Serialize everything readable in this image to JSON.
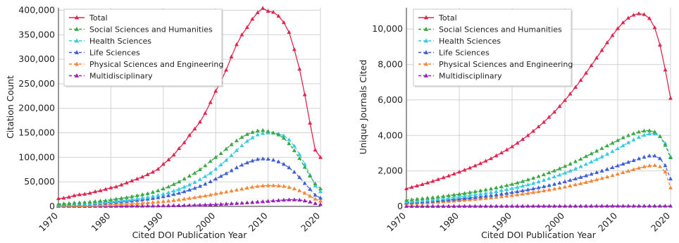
{
  "chart_data": [
    {
      "type": "line",
      "xlabel": "Cited DOI Publication Year",
      "ylabel": "Citation Count",
      "xlim": [
        1970,
        2020
      ],
      "ylim": [
        0,
        405000
      ],
      "xticks": [
        1970,
        1980,
        1990,
        2000,
        2010,
        2020
      ],
      "yticks": [
        0,
        50000,
        100000,
        150000,
        200000,
        250000,
        300000,
        350000,
        400000
      ],
      "ytick_labels": [
        "0",
        "50,000",
        "100,000",
        "150,000",
        "200,000",
        "250,000",
        "300,000",
        "350,000",
        "400,000"
      ],
      "xtick_labels": [
        "1970",
        "1980",
        "1990",
        "2000",
        "2010",
        "2020"
      ],
      "grid": true,
      "legend_position": "top-left",
      "x": [
        1970,
        1971,
        1972,
        1973,
        1974,
        1975,
        1976,
        1977,
        1978,
        1979,
        1980,
        1981,
        1982,
        1983,
        1984,
        1985,
        1986,
        1987,
        1988,
        1989,
        1990,
        1991,
        1992,
        1993,
        1994,
        1995,
        1996,
        1997,
        1998,
        1999,
        2000,
        2001,
        2002,
        2003,
        2004,
        2005,
        2006,
        2007,
        2008,
        2009,
        2010,
        2011,
        2012,
        2013,
        2014,
        2015,
        2016,
        2017,
        2018,
        2019,
        2020
      ],
      "series": [
        {
          "name": "Total",
          "color": "#e0264f",
          "marker": "triangle",
          "dash": "solid",
          "values": [
            16000,
            17000,
            19000,
            22000,
            24000,
            25000,
            27000,
            30000,
            32000,
            35000,
            38000,
            40000,
            44000,
            48000,
            52000,
            56000,
            60000,
            65000,
            70000,
            76000,
            86000,
            95000,
            105000,
            118000,
            130000,
            145000,
            158000,
            172000,
            190000,
            212000,
            235000,
            255000,
            278000,
            305000,
            330000,
            350000,
            365000,
            382000,
            395000,
            404000,
            398000,
            396000,
            388000,
            375000,
            355000,
            320000,
            280000,
            228000,
            170000,
            115000,
            100000
          ]
        },
        {
          "name": "Social Sciences and Humanities",
          "color": "#3aa843",
          "marker": "triangle",
          "dash": "dashed",
          "values": [
            5000,
            5500,
            6000,
            7000,
            7500,
            8000,
            9000,
            10000,
            11000,
            12000,
            13500,
            15000,
            16500,
            18000,
            20000,
            22000,
            24000,
            26000,
            29000,
            32000,
            36000,
            40000,
            45000,
            50000,
            56000,
            62000,
            68000,
            75000,
            83000,
            92000,
            100000,
            108000,
            117000,
            126000,
            134000,
            141000,
            147000,
            151000,
            154000,
            155000,
            153000,
            150000,
            146000,
            139000,
            128000,
            114000,
            98000,
            80000,
            62000,
            46000,
            36000
          ]
        },
        {
          "name": "Health Sciences",
          "color": "#36cce0",
          "marker": "triangle",
          "dash": "dashed",
          "values": [
            3000,
            3500,
            4000,
            4500,
            5000,
            5500,
            6000,
            7000,
            7500,
            8500,
            9500,
            10500,
            11500,
            12500,
            14000,
            15500,
            17000,
            18500,
            20500,
            22500,
            25000,
            28000,
            31500,
            35000,
            39500,
            44000,
            49000,
            55000,
            61000,
            68000,
            76000,
            85000,
            94000,
            104000,
            114000,
            124000,
            133000,
            140000,
            146000,
            149000,
            150000,
            150000,
            148000,
            144000,
            136000,
            123000,
            106000,
            86000,
            64000,
            42000,
            30000
          ]
        },
        {
          "name": "Life Sciences",
          "color": "#3f5fd4",
          "marker": "triangle",
          "dash": "dashed",
          "values": [
            2500,
            3000,
            3500,
            4000,
            4500,
            5000,
            5500,
            6000,
            6500,
            7000,
            8000,
            8500,
            9500,
            10500,
            11500,
            12500,
            13500,
            15000,
            16500,
            18000,
            20000,
            22000,
            24500,
            27000,
            30000,
            33500,
            37000,
            41000,
            45500,
            50500,
            56000,
            61500,
            67000,
            73000,
            79000,
            84500,
            89000,
            93000,
            96000,
            97000,
            96500,
            94500,
            91000,
            86000,
            79000,
            70000,
            59000,
            47000,
            35000,
            23000,
            17000
          ]
        },
        {
          "name": "Physical Sciences and Engineering",
          "color": "#f5883a",
          "marker": "triangle",
          "dash": "dashed",
          "values": [
            1000,
            1200,
            1400,
            1600,
            1800,
            2000,
            2300,
            2600,
            2900,
            3200,
            3600,
            4000,
            4500,
            5000,
            5500,
            6000,
            6700,
            7400,
            8200,
            9000,
            10000,
            11000,
            12200,
            13500,
            15000,
            16500,
            18000,
            19800,
            21500,
            23500,
            25500,
            27500,
            29500,
            31500,
            33500,
            35500,
            37500,
            39500,
            41000,
            42000,
            42500,
            42500,
            42000,
            41000,
            39000,
            36000,
            32000,
            27000,
            21000,
            15000,
            11000
          ]
        },
        {
          "name": "Multidisciplinary",
          "color": "#9b1fb8",
          "marker": "triangle",
          "dash": "dashed",
          "values": [
            200,
            220,
            250,
            280,
            300,
            330,
            360,
            400,
            440,
            480,
            520,
            570,
            620,
            680,
            740,
            800,
            880,
            960,
            1050,
            1150,
            1300,
            1450,
            1600,
            1800,
            2000,
            2200,
            2500,
            2800,
            3100,
            3500,
            4000,
            4500,
            5000,
            5600,
            6200,
            6800,
            7500,
            8200,
            9000,
            9800,
            10600,
            11400,
            12200,
            13000,
            13500,
            13600,
            13000,
            11500,
            9000,
            6000,
            4000
          ]
        }
      ]
    },
    {
      "type": "line",
      "xlabel": "Cited DOI Publication Year",
      "ylabel": "Unique Journals Cited",
      "xlim": [
        1970,
        2020
      ],
      "ylim": [
        0,
        11200
      ],
      "xticks": [
        1970,
        1980,
        1990,
        2000,
        2010,
        2020
      ],
      "yticks": [
        0,
        2000,
        4000,
        6000,
        8000,
        10000
      ],
      "ytick_labels": [
        "0",
        "2,000",
        "4,000",
        "6,000",
        "8,000",
        "10,000"
      ],
      "xtick_labels": [
        "1970",
        "1980",
        "1990",
        "2000",
        "2010",
        "2020"
      ],
      "grid": true,
      "legend_position": "top-left",
      "x": [
        1970,
        1971,
        1972,
        1973,
        1974,
        1975,
        1976,
        1977,
        1978,
        1979,
        1980,
        1981,
        1982,
        1983,
        1984,
        1985,
        1986,
        1987,
        1988,
        1989,
        1990,
        1991,
        1992,
        1993,
        1994,
        1995,
        1996,
        1997,
        1998,
        1999,
        2000,
        2001,
        2002,
        2003,
        2004,
        2005,
        2006,
        2007,
        2008,
        2009,
        2010,
        2011,
        2012,
        2013,
        2014,
        2015,
        2016,
        2017,
        2018,
        2019,
        2020
      ],
      "series": [
        {
          "name": "Total",
          "color": "#e0264f",
          "marker": "triangle",
          "dash": "solid",
          "values": [
            1000,
            1080,
            1160,
            1240,
            1330,
            1420,
            1520,
            1620,
            1720,
            1830,
            1940,
            2050,
            2170,
            2290,
            2420,
            2560,
            2700,
            2860,
            3020,
            3190,
            3370,
            3570,
            3780,
            4000,
            4240,
            4490,
            4750,
            5030,
            5320,
            5640,
            5980,
            6340,
            6720,
            7110,
            7520,
            7940,
            8370,
            8800,
            9230,
            9640,
            10030,
            10360,
            10620,
            10790,
            10870,
            10820,
            10600,
            10080,
            9100,
            7700,
            6100
          ]
        },
        {
          "name": "Social Sciences and Humanities",
          "color": "#3aa843",
          "marker": "triangle",
          "dash": "dashed",
          "values": [
            350,
            380,
            410,
            440,
            470,
            500,
            535,
            570,
            610,
            650,
            690,
            735,
            780,
            830,
            880,
            935,
            990,
            1050,
            1110,
            1180,
            1250,
            1330,
            1410,
            1500,
            1590,
            1690,
            1790,
            1900,
            2010,
            2130,
            2260,
            2390,
            2530,
            2670,
            2820,
            2970,
            3120,
            3270,
            3420,
            3570,
            3720,
            3870,
            4000,
            4110,
            4200,
            4260,
            4270,
            4200,
            3950,
            3450,
            2750
          ]
        },
        {
          "name": "Health Sciences",
          "color": "#36cce0",
          "marker": "triangle",
          "dash": "dashed",
          "values": [
            250,
            275,
            300,
            325,
            350,
            375,
            405,
            435,
            465,
            500,
            535,
            570,
            610,
            650,
            695,
            740,
            790,
            840,
            895,
            950,
            1010,
            1075,
            1145,
            1220,
            1300,
            1385,
            1475,
            1570,
            1670,
            1775,
            1885,
            2000,
            2120,
            2245,
            2375,
            2510,
            2650,
            2795,
            2945,
            3100,
            3260,
            3425,
            3590,
            3750,
            3900,
            4020,
            4100,
            4100,
            3950,
            3550,
            2800
          ]
        },
        {
          "name": "Life Sciences",
          "color": "#3f5fd4",
          "marker": "triangle",
          "dash": "dashed",
          "values": [
            200,
            220,
            240,
            260,
            280,
            300,
            320,
            345,
            370,
            395,
            420,
            450,
            480,
            510,
            545,
            580,
            615,
            655,
            695,
            740,
            785,
            835,
            885,
            940,
            995,
            1055,
            1115,
            1180,
            1250,
            1320,
            1395,
            1475,
            1555,
            1640,
            1730,
            1820,
            1910,
            2000,
            2095,
            2190,
            2290,
            2390,
            2490,
            2590,
            2690,
            2780,
            2850,
            2850,
            2700,
            2300,
            1550
          ]
        },
        {
          "name": "Physical Sciences and Engineering",
          "color": "#f5883a",
          "marker": "triangle",
          "dash": "dashed",
          "values": [
            150,
            165,
            180,
            195,
            210,
            225,
            245,
            265,
            285,
            305,
            325,
            350,
            375,
            400,
            425,
            455,
            485,
            515,
            550,
            585,
            620,
            660,
            700,
            740,
            785,
            830,
            880,
            930,
            985,
            1040,
            1100,
            1160,
            1225,
            1290,
            1360,
            1430,
            1505,
            1580,
            1660,
            1740,
            1825,
            1910,
            1995,
            2080,
            2160,
            2235,
            2290,
            2310,
            2240,
            1950,
            1050
          ]
        },
        {
          "name": "Multidisciplinary",
          "color": "#9b1fb8",
          "marker": "triangle",
          "dash": "dashed",
          "values": [
            10,
            10,
            10,
            10,
            10,
            10,
            10,
            10,
            10,
            10,
            12,
            12,
            12,
            12,
            12,
            12,
            14,
            14,
            14,
            14,
            15,
            15,
            15,
            16,
            16,
            16,
            17,
            17,
            18,
            18,
            18,
            19,
            19,
            20,
            20,
            20,
            21,
            21,
            22,
            22,
            22,
            23,
            23,
            24,
            24,
            24,
            24,
            24,
            24,
            24,
            24
          ]
        }
      ]
    }
  ]
}
